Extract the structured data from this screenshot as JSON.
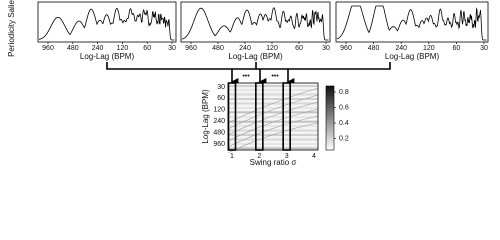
{
  "top_panels": {
    "ylabel": "Periodicity Salience",
    "xlabel": "Log-Lag (BPM)",
    "ticks": [
      "960",
      "480",
      "240",
      "120",
      "60",
      "30"
    ]
  },
  "dots": "•••",
  "heatmap": {
    "ylabel": "Log-Lag (BPM)",
    "yticks": [
      "30",
      "60",
      "120",
      "240",
      "480",
      "960"
    ],
    "xlabel": "Swing ratio σ",
    "xticks": [
      "1",
      "2",
      "3",
      "4"
    ],
    "colorbar_ticks": [
      "0.8",
      "0.6",
      "0.4",
      "0.2"
    ]
  }
}
